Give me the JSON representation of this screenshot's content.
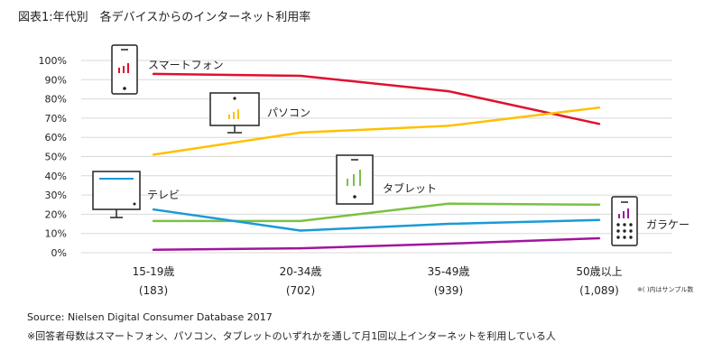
{
  "title": "図表1:年代別　各デバイスからのインターネット利用率",
  "chart_data": {
    "type": "line",
    "title": "図表1:年代別　各デバイスからのインターネット利用率",
    "categories": [
      "15-19歳",
      "20-34歳",
      "35-49歳",
      "50歳以上"
    ],
    "sample_sizes": [
      "(183)",
      "(702)",
      "(939)",
      "(1,089)"
    ],
    "ylim": [
      0,
      100
    ],
    "yticks": [
      "0%",
      "10%",
      "20%",
      "30%",
      "40%",
      "50%",
      "60%",
      "70%",
      "80%",
      "90%",
      "100%"
    ],
    "grid": true,
    "series": [
      {
        "name": "スマートフォン",
        "color": "#e0102e",
        "icon": "smartphone-icon",
        "values": [
          93,
          92,
          84,
          67
        ]
      },
      {
        "name": "パソコン",
        "color": "#ffc000",
        "icon": "pc-monitor-icon",
        "values": [
          51,
          62.5,
          66,
          75.5
        ]
      },
      {
        "name": "タブレット",
        "color": "#7ac143",
        "icon": "tablet-icon",
        "values": [
          16.5,
          16.5,
          25.5,
          25
        ]
      },
      {
        "name": "テレビ",
        "color": "#1a9ad6",
        "icon": "tv-icon",
        "values": [
          22.5,
          11.5,
          15,
          17
        ]
      },
      {
        "name": "ガラケー",
        "color": "#a0169b",
        "icon": "feature-phone-icon",
        "values": [
          1.5,
          2.3,
          4.7,
          7.5
        ]
      }
    ]
  },
  "note": "※( )内はサンプル数",
  "source": "Source: Nielsen Digital Consumer Database 2017",
  "footnote": "※回答者母数はスマートフォン、パソコン、タブレットのいずれかを通して月1回以上インターネットを利用している人"
}
